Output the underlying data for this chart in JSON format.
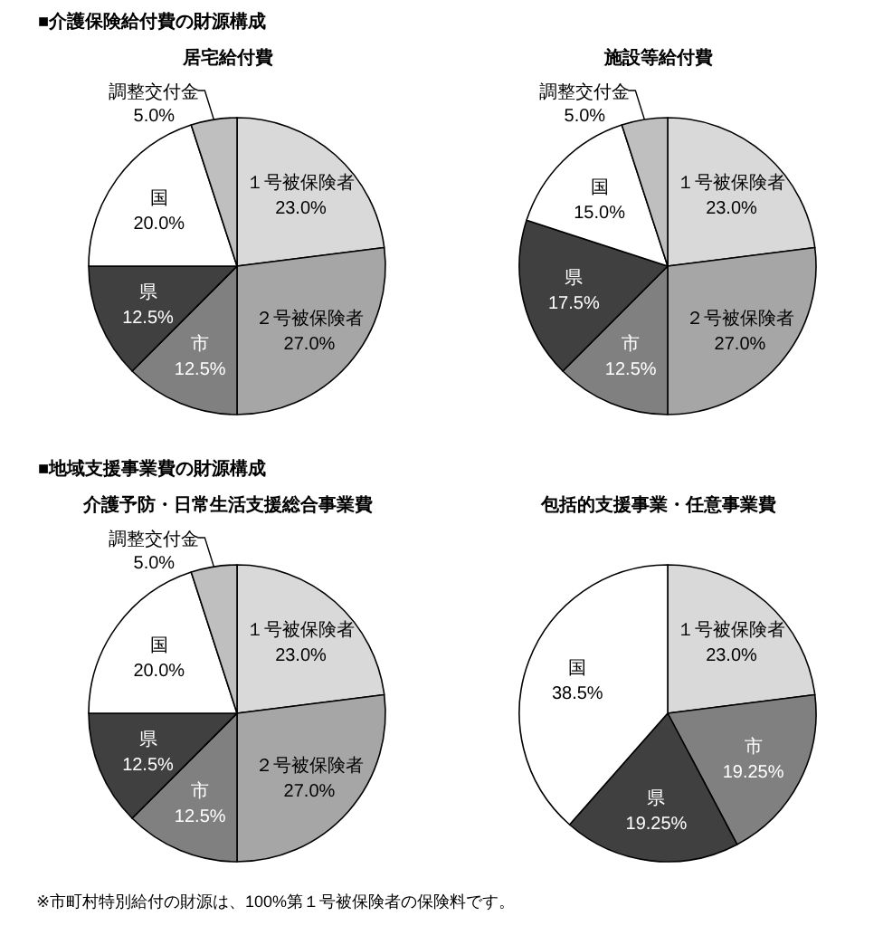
{
  "chart_data": [
    {
      "type": "pie",
      "title": "居宅給付費",
      "annotations": [
        "■介護保険給付費の財源構成"
      ],
      "categories": [
        "１号被保険者",
        "２号被保険者",
        "市",
        "県",
        "国",
        "調整交付金"
      ],
      "values": [
        23.0,
        27.0,
        12.5,
        12.5,
        20.0,
        5.0
      ],
      "value_labels": [
        "23.0%",
        "27.0%",
        "12.5%",
        "12.5%",
        "20.0%",
        "5.0%"
      ],
      "colors": [
        "#d9d9d9",
        "#a6a6a6",
        "#808080",
        "#404040",
        "#ffffff",
        "#bfbfbf"
      ]
    },
    {
      "type": "pie",
      "title": "施設等給付費",
      "categories": [
        "１号被保険者",
        "２号被保険者",
        "市",
        "県",
        "国",
        "調整交付金"
      ],
      "values": [
        23.0,
        27.0,
        12.5,
        17.5,
        15.0,
        5.0
      ],
      "value_labels": [
        "23.0%",
        "27.0%",
        "12.5%",
        "17.5%",
        "15.0%",
        "5.0%"
      ],
      "colors": [
        "#d9d9d9",
        "#a6a6a6",
        "#808080",
        "#404040",
        "#ffffff",
        "#bfbfbf"
      ]
    },
    {
      "type": "pie",
      "title": "介護予防・日常生活支援総合事業費",
      "annotations": [
        "■地域支援事業費の財源構成",
        "※市町村特別給付の財源は、100%第１号被保険者の保険料です。"
      ],
      "categories": [
        "１号被保険者",
        "２号被保険者",
        "市",
        "県",
        "国",
        "調整交付金"
      ],
      "values": [
        23.0,
        27.0,
        12.5,
        12.5,
        20.0,
        5.0
      ],
      "value_labels": [
        "23.0%",
        "27.0%",
        "12.5%",
        "12.5%",
        "20.0%",
        "5.0%"
      ],
      "colors": [
        "#d9d9d9",
        "#a6a6a6",
        "#808080",
        "#404040",
        "#ffffff",
        "#bfbfbf"
      ]
    },
    {
      "type": "pie",
      "title": "包括的支援事業・任意事業費",
      "categories": [
        "１号被保険者",
        "市",
        "県",
        "国"
      ],
      "values": [
        23.0,
        19.25,
        19.25,
        38.5
      ],
      "value_labels": [
        "23.0%",
        "19.25%",
        "19.25%",
        "38.5%"
      ],
      "colors": [
        "#d9d9d9",
        "#808080",
        "#404040",
        "#ffffff"
      ]
    }
  ]
}
